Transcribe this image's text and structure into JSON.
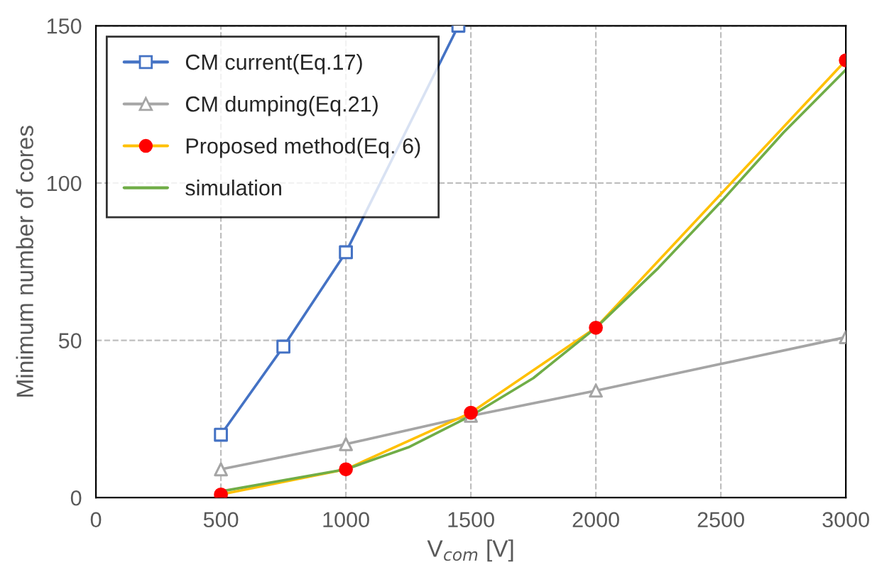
{
  "chart_data": {
    "type": "line",
    "xlabel": "V$_{com}$ [V]",
    "ylabel": "Minimum number of cores",
    "xlim": [
      0,
      3000
    ],
    "xticks": [
      0,
      500,
      1000,
      1500,
      2000,
      2500,
      3000
    ],
    "ylim": [
      0,
      150
    ],
    "yticks": [
      0,
      50,
      100,
      150
    ],
    "grid": true,
    "legend": "top left",
    "series": [
      {
        "name": "CM current(Eq.17)",
        "color": "#4472c4",
        "marker": "square",
        "x": [
          500,
          750,
          1000,
          1450
        ],
        "values": [
          20,
          48,
          78,
          150
        ]
      },
      {
        "name": "CM dumping(Eq.21)",
        "color": "#a5a5a5",
        "marker": "triangle",
        "x": [
          500,
          1000,
          1500,
          2000,
          3000
        ],
        "values": [
          9,
          17,
          26,
          34,
          51
        ]
      },
      {
        "name": "Proposed method(Eq. 6)",
        "color": "#ffc000",
        "colors": [
          "#ff0000",
          "#ff0000",
          "#ff0000",
          "#ff0000",
          "#ff0000"
        ],
        "marker": "circle",
        "x": [
          500,
          1000,
          1500,
          2000,
          3000
        ],
        "values": [
          1,
          9,
          27,
          54,
          139
        ]
      },
      {
        "name": "simulation",
        "color": "#70ad47",
        "marker": "none",
        "x": [
          500,
          1000,
          1250,
          1500,
          1750,
          2000,
          2250,
          2500,
          2750,
          3000
        ],
        "values": [
          2,
          9,
          16,
          26,
          38,
          54,
          73,
          94,
          116,
          136
        ]
      }
    ]
  }
}
